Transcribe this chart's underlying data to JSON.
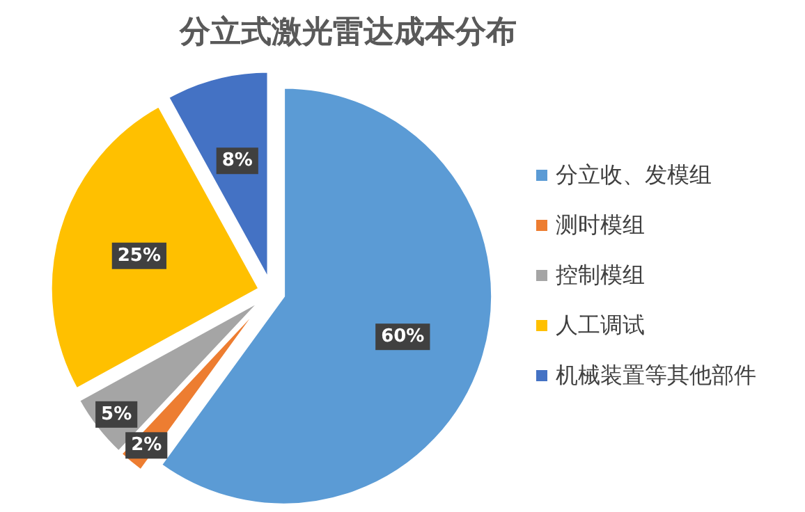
{
  "chart_data": {
    "type": "pie",
    "title": "分立式激光雷达成本分布",
    "categories": [
      "分立收、发模组",
      "测时模组",
      "控制模组",
      "人工调试",
      "机械装置等其他部件"
    ],
    "values": [
      60,
      2,
      5,
      25,
      8
    ],
    "value_labels": [
      "60%",
      "2%",
      "5%",
      "25%",
      "8%"
    ],
    "colors": [
      "#5b9bd5",
      "#ed7d31",
      "#a5a5a5",
      "#ffc000",
      "#4472c4"
    ],
    "legend": "right"
  }
}
